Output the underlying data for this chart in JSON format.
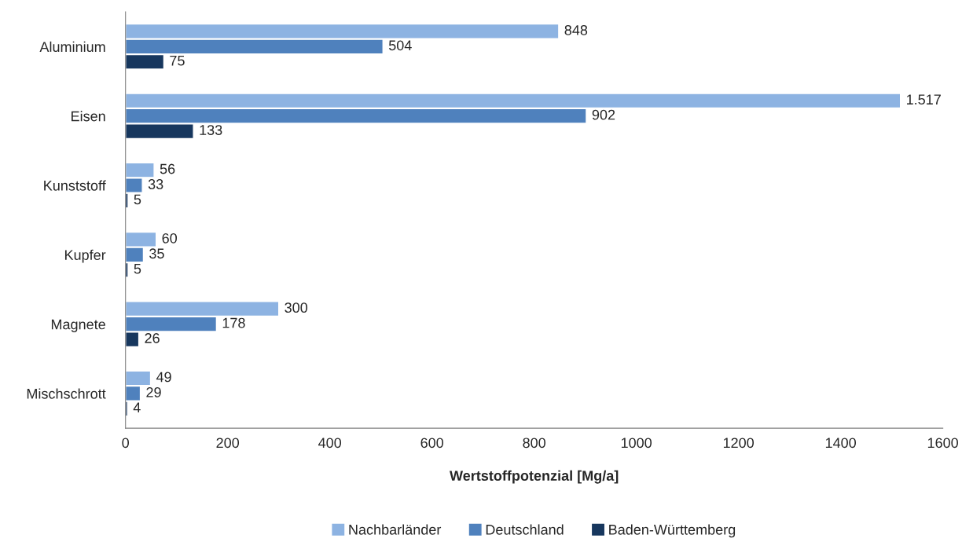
{
  "chart_data": {
    "type": "bar",
    "orientation": "horizontal",
    "xlabel": "Wertstoffpotenzial [Mg/a]",
    "categories": [
      "Aluminium",
      "Eisen",
      "Kunststoff",
      "Kupfer",
      "Magnete",
      "Mischschrott"
    ],
    "series": [
      {
        "name": "Nachbarländer",
        "color": "#8db3e2",
        "values": [
          848,
          1517,
          56,
          60,
          300,
          49
        ],
        "value_labels": [
          "848",
          "1.517",
          "56",
          "60",
          "300",
          "49"
        ]
      },
      {
        "name": "Deutschland",
        "color": "#4f81bd",
        "values": [
          504,
          902,
          33,
          35,
          178,
          29
        ],
        "value_labels": [
          "504",
          "902",
          "33",
          "35",
          "178",
          "29"
        ]
      },
      {
        "name": "Baden-Württemberg",
        "color": "#17375e",
        "values": [
          75,
          133,
          5,
          5,
          26,
          4
        ],
        "value_labels": [
          "75",
          "133",
          "5",
          "5",
          "26",
          "4"
        ]
      }
    ],
    "xlim": [
      0,
      1600
    ],
    "xticks": [
      0,
      200,
      400,
      600,
      800,
      1000,
      1200,
      1400,
      1600
    ],
    "grid": false,
    "legend": "bottom"
  }
}
